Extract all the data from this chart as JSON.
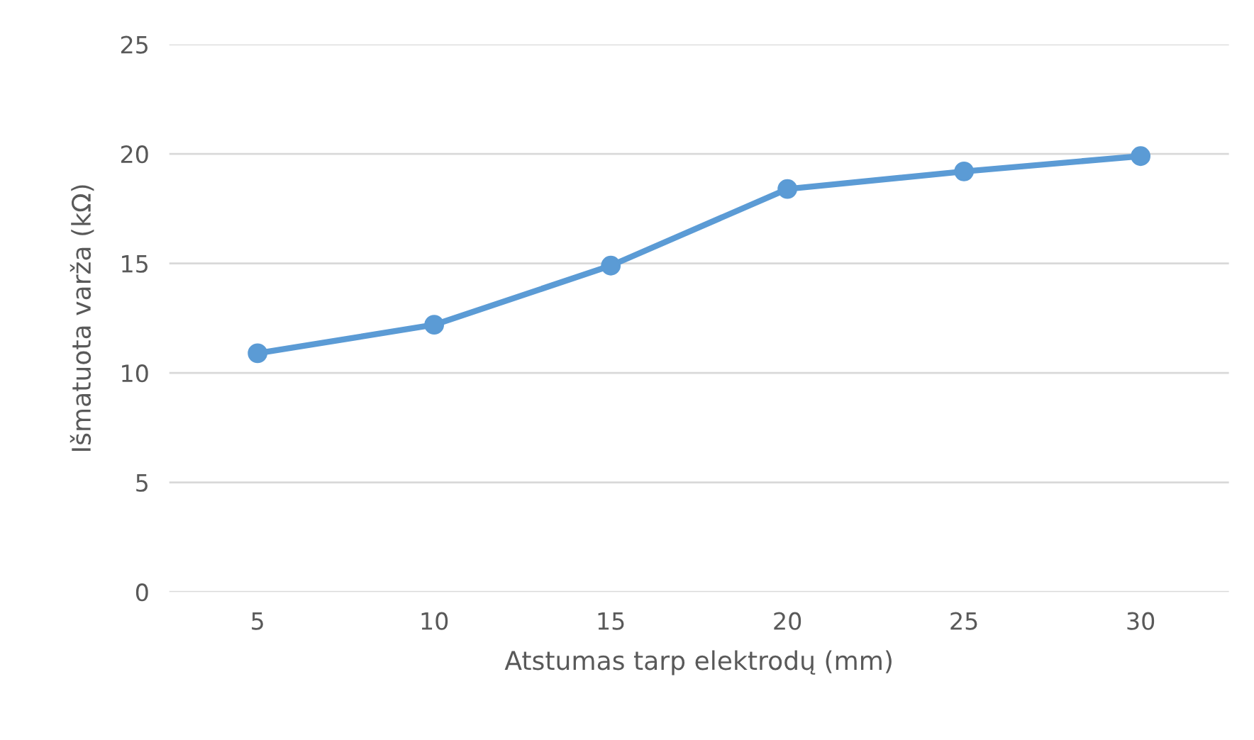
{
  "chart_data": {
    "type": "line",
    "xlabel": "Atstumas tarp elektrodų (mm)",
    "ylabel": "Išmatuota varža (kΩ)",
    "categories": [
      "5",
      "10",
      "15",
      "20",
      "25",
      "30"
    ],
    "series": [
      {
        "color": "#5b9bd5",
        "values": [
          10.9,
          12.2,
          14.9,
          18.4,
          19.2,
          19.9
        ]
      }
    ],
    "ylim": [
      0,
      25
    ],
    "yticks": [
      0,
      5,
      10,
      15,
      20,
      25
    ],
    "grid": "y",
    "marker": "circle",
    "line_style": "solid"
  }
}
